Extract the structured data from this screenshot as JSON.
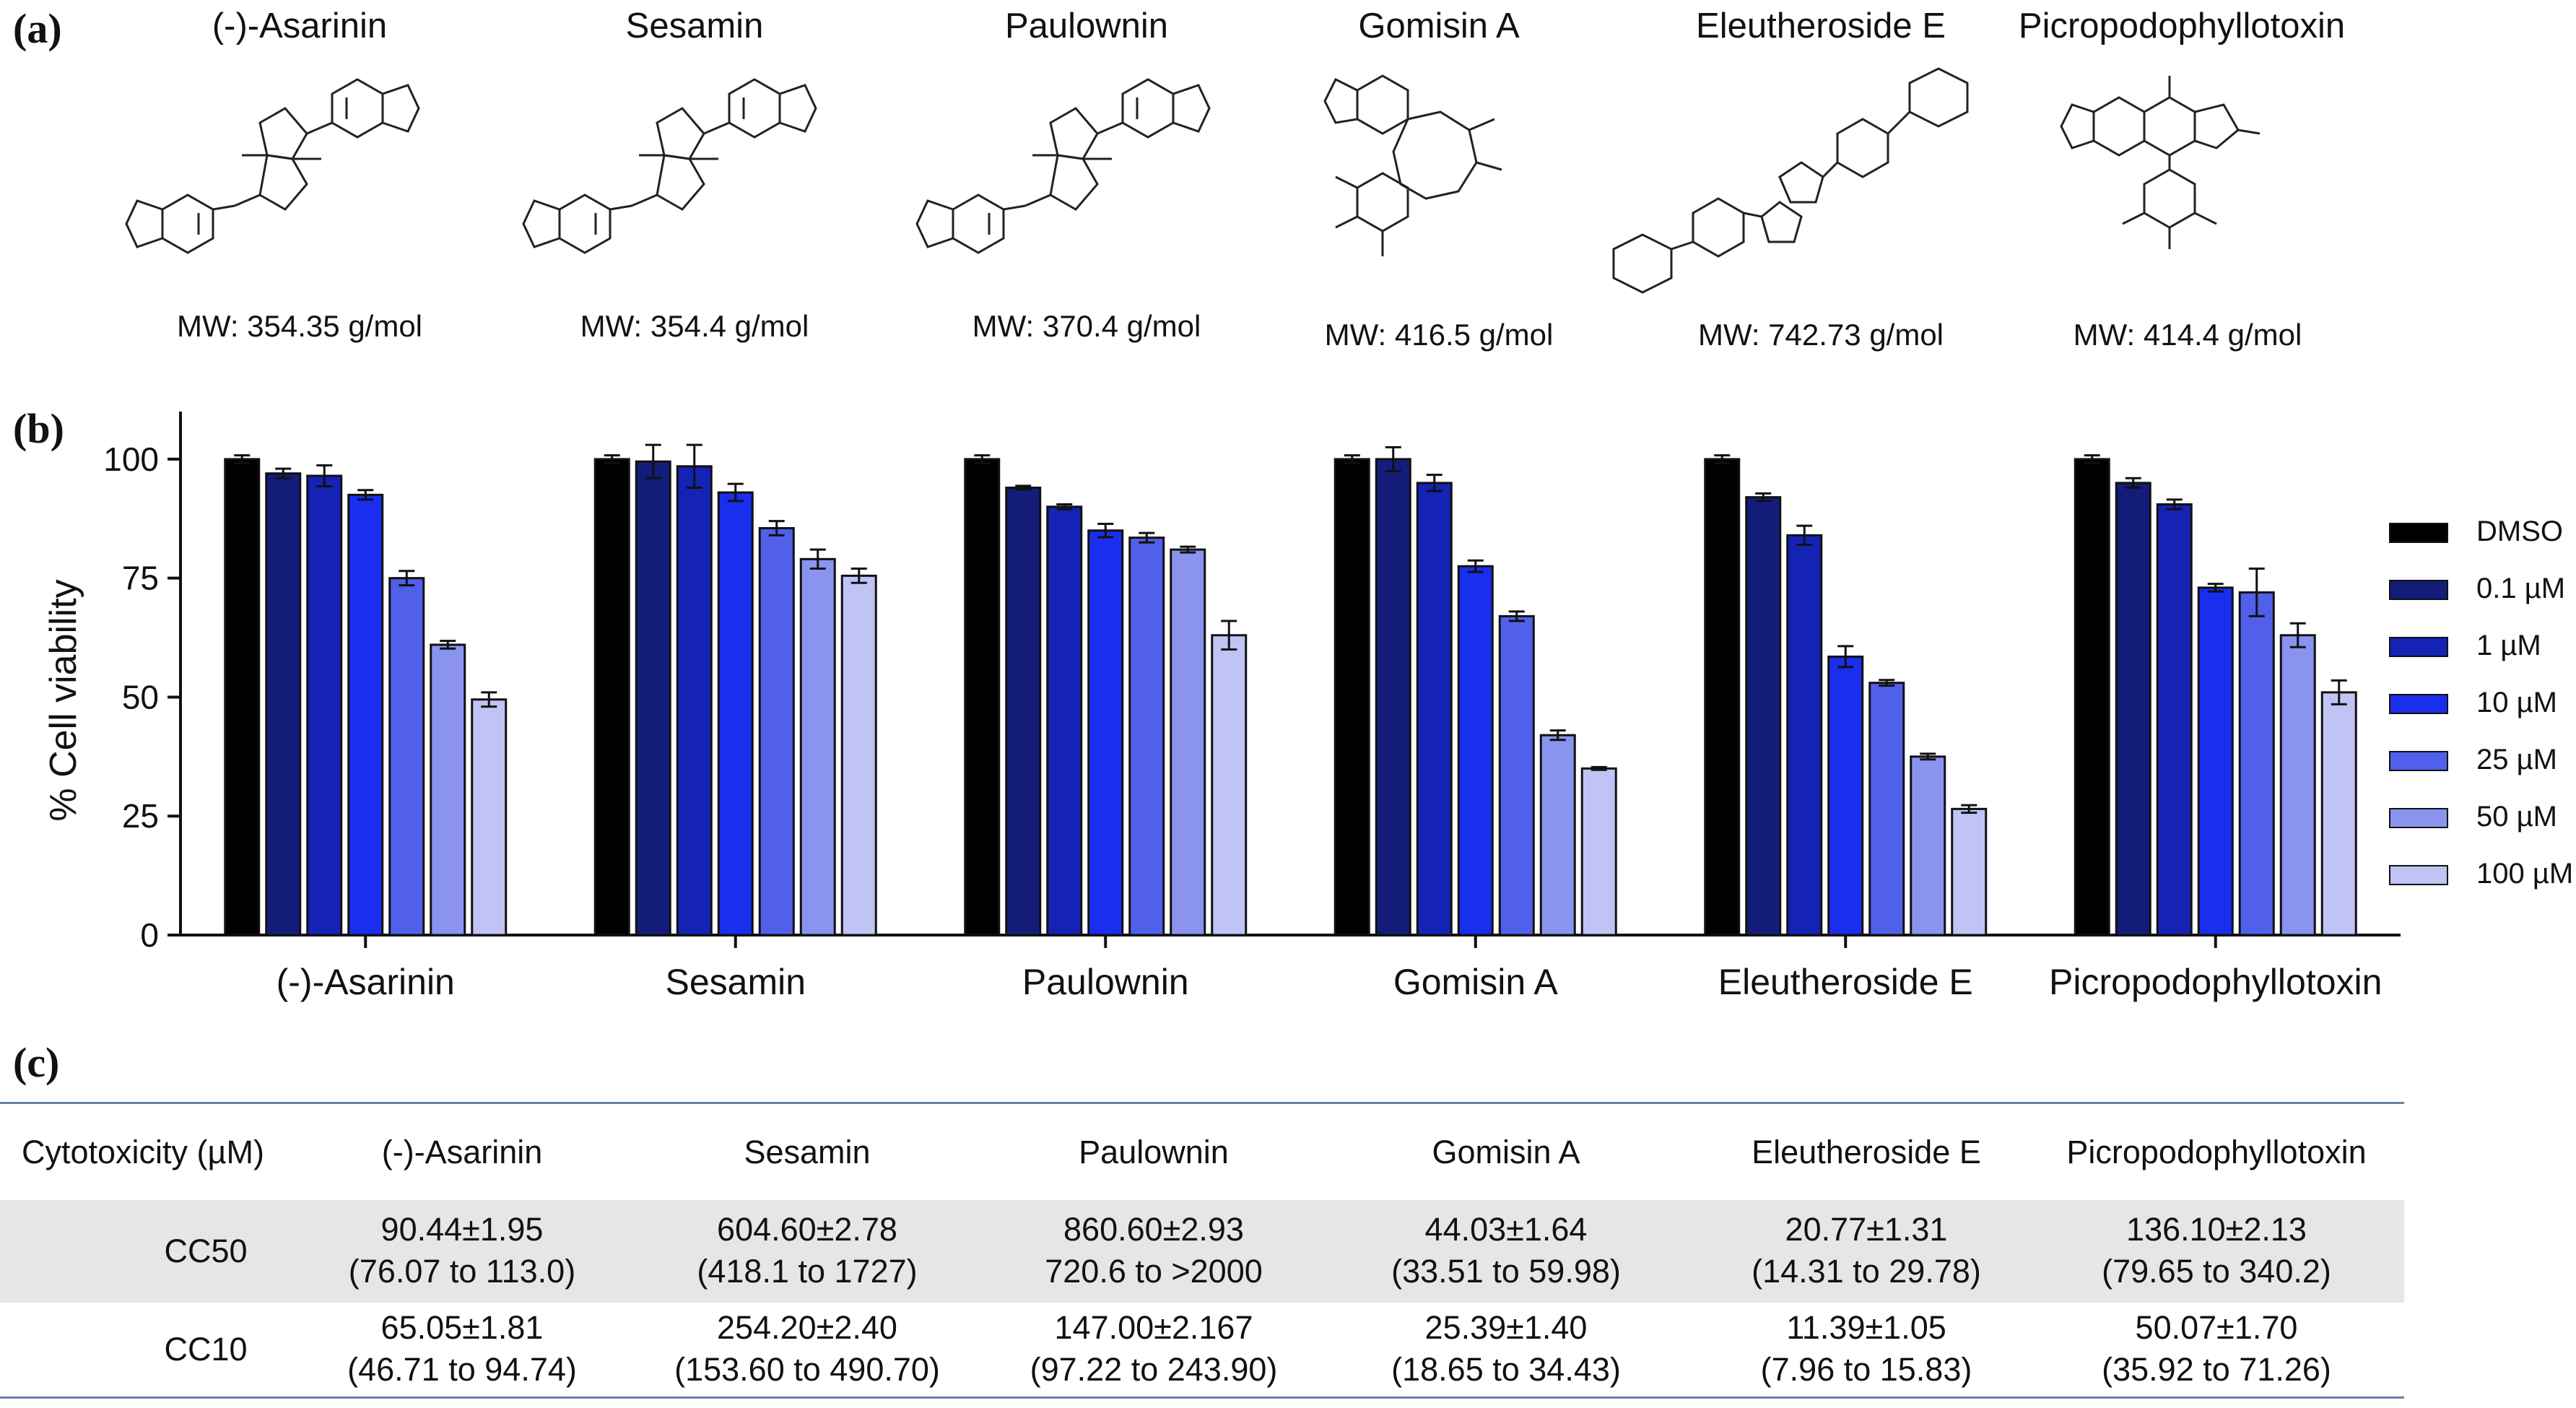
{
  "panels": {
    "a": "(a)",
    "b": "(b)",
    "c": "(c)"
  },
  "compounds": [
    {
      "name": "(-)-Asarinin",
      "mw": "MW: 354.35 g/mol"
    },
    {
      "name": "Sesamin",
      "mw": "MW: 354.4 g/mol"
    },
    {
      "name": "Paulownin",
      "mw": "MW: 370.4 g/mol"
    },
    {
      "name": "Gomisin A",
      "mw": "MW: 416.5 g/mol"
    },
    {
      "name": "Eleutheroside E",
      "mw": "MW: 742.73 g/mol"
    },
    {
      "name": "Picropodophyllotoxin",
      "mw": "MW: 414.4 g/mol"
    }
  ],
  "chart_data": {
    "type": "bar",
    "ylabel": "% Cell viability",
    "xlabel": "",
    "ylim": [
      0,
      110
    ],
    "yticks": [
      0,
      25,
      50,
      75,
      100
    ],
    "categories": [
      "(-)-Asarinin",
      "Sesamin",
      "Paulownin",
      "Gomisin A",
      "Eleutheroside E",
      "Picropodophyllotoxin"
    ],
    "series": [
      {
        "name": "DMSO",
        "color": "#000000",
        "values": [
          100,
          100,
          100,
          100,
          100,
          100
        ],
        "errors": [
          0.8,
          0.8,
          0.8,
          0.8,
          0.8,
          0.8
        ]
      },
      {
        "name": "0.1  µM",
        "color": "#141c7a",
        "values": [
          97,
          99.5,
          94,
          100,
          92,
          95
        ],
        "errors": [
          1,
          3.5,
          0.4,
          2.5,
          0.8,
          1
        ]
      },
      {
        "name": "1   µM",
        "color": "#1423b4",
        "values": [
          96.5,
          98.5,
          90,
          95,
          84,
          90.5
        ],
        "errors": [
          2.2,
          4.5,
          0.5,
          1.7,
          2,
          1
        ]
      },
      {
        "name": "10  µM",
        "color": "#1a2eee",
        "values": [
          92.5,
          93,
          85,
          77.5,
          58.5,
          73
        ],
        "errors": [
          1,
          1.8,
          1.4,
          1.2,
          2.2,
          0.8
        ]
      },
      {
        "name": "25  µM",
        "color": "#5060ea",
        "values": [
          75,
          85.5,
          83.5,
          67,
          53,
          72
        ],
        "errors": [
          1.5,
          1.5,
          1,
          1,
          0.6,
          5
        ]
      },
      {
        "name": "50  µM",
        "color": "#8a94ee",
        "values": [
          61,
          79,
          81,
          42,
          37.5,
          63
        ],
        "errors": [
          0.8,
          2,
          0.6,
          1,
          0.6,
          2.5
        ]
      },
      {
        "name": "100  µM",
        "color": "#c0c4f4",
        "values": [
          49.5,
          75.5,
          63,
          35,
          26.5,
          51
        ],
        "errors": [
          1.5,
          1.5,
          3,
          0.3,
          0.8,
          2.5
        ]
      }
    ]
  },
  "table": {
    "header": [
      "Cytotoxicity (µM)",
      "(-)-Asarinin",
      "Sesamin",
      "Paulownin",
      "Gomisin A",
      "Eleutheroside E",
      "Picropodophyllotoxin"
    ],
    "rows": [
      {
        "label": "CC50",
        "cells": [
          [
            "90.44±1.95",
            "(76.07 to 113.0)"
          ],
          [
            "604.60±2.78",
            "(418.1 to 1727)"
          ],
          [
            "860.60±2.93",
            "720.6 to >2000"
          ],
          [
            "44.03±1.64",
            "(33.51 to 59.98)"
          ],
          [
            "20.77±1.31",
            "(14.31 to 29.78)"
          ],
          [
            "136.10±2.13",
            "(79.65 to 340.2)"
          ]
        ]
      },
      {
        "label": "CC10",
        "cells": [
          [
            "65.05±1.81",
            "(46.71 to 94.74)"
          ],
          [
            "254.20±2.40",
            "(153.60 to 490.70)"
          ],
          [
            "147.00±2.167",
            "(97.22 to 243.90)"
          ],
          [
            "25.39±1.40",
            "(18.65 to 34.43)"
          ],
          [
            "11.39±1.05",
            "(7.96 to 15.83)"
          ],
          [
            "50.07±1.70",
            "(35.92 to 71.26)"
          ]
        ]
      }
    ]
  }
}
